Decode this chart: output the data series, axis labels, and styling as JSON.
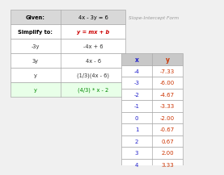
{
  "given_label": "Given:",
  "given_value": "4x - 3y = 6",
  "simplify_label": "Simplify to:",
  "simplify_value": "y = mx + b",
  "simplify_note": "Slope-Intercept Form",
  "steps": [
    [
      "-3y",
      "-4x + 6"
    ],
    [
      "3y",
      "4x - 6"
    ],
    [
      "y",
      "(1/3)(4x - 6)"
    ],
    [
      "y",
      "(4/3) * x - 2"
    ]
  ],
  "x_values": [
    -4,
    -3,
    -2,
    -1,
    0,
    1,
    2,
    3,
    4
  ],
  "y_values": [
    -7.33,
    -6.0,
    -4.67,
    -3.33,
    -2.0,
    -0.67,
    0.67,
    2.0,
    3.33
  ],
  "header_bg": "#c8c8c8",
  "row_bg": "#ffffff",
  "green_row_bg": "#e8ffe8",
  "given_bg": "#d8d8d8",
  "simplify_bg": "#ffffff",
  "border_color": "#aaaaaa",
  "x_color": "#2222cc",
  "y_color": "#cc3300",
  "simplify_label_color": "#000000",
  "simplify_value_color": "#cc0000",
  "given_text_color": "#000000",
  "step_text_color": "#333333",
  "green_text_color": "#008800",
  "note_color": "#999999",
  "fig_bg": "#f0f0f0"
}
